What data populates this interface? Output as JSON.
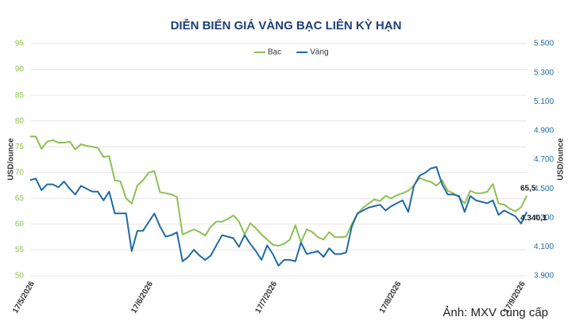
{
  "chart_data": {
    "type": "line",
    "title": "DIỄN BIẾN GIÁ VÀNG BẠC LIÊN KỲ HẠN",
    "ylabel": "USD/ounce",
    "y2label": "USD/ounce",
    "source": "Ảnh: MXV cung cấp",
    "legend": "top",
    "categories": [
      "17/5/2026",
      null,
      null,
      null,
      null,
      null,
      null,
      null,
      null,
      null,
      null,
      null,
      null,
      null,
      null,
      null,
      null,
      null,
      null,
      null,
      null,
      "17/6/2026",
      null,
      null,
      null,
      null,
      null,
      null,
      null,
      null,
      null,
      null,
      null,
      null,
      null,
      null,
      null,
      null,
      null,
      null,
      null,
      null,
      null,
      "17/7/2026",
      null,
      null,
      null,
      null,
      null,
      null,
      null,
      null,
      null,
      null,
      null,
      null,
      null,
      null,
      null,
      null,
      null,
      null,
      null,
      null,
      null,
      "17/8/2026",
      null,
      null,
      null,
      null,
      null,
      null,
      null,
      null,
      null,
      null,
      null,
      null,
      null,
      null,
      null,
      null,
      null,
      null,
      null,
      null,
      null,
      "17/9/2026",
      null
    ],
    "ylim": [
      50,
      95
    ],
    "yticks": [
      50,
      55,
      60,
      65,
      70,
      75,
      80,
      85,
      90,
      95
    ],
    "y2lim": [
      3900,
      5500
    ],
    "y2ticks": [
      {
        "value": 3900,
        "label": "3.900"
      },
      {
        "value": 4100,
        "label": "4.100"
      },
      {
        "value": 4300,
        "label": "4.300"
      },
      {
        "value": 4500,
        "label": "4.500"
      },
      {
        "value": 4700,
        "label": "4.700"
      },
      {
        "value": 4900,
        "label": "4.900"
      },
      {
        "value": 5100,
        "label": "5.100"
      },
      {
        "value": 5300,
        "label": "5.300"
      },
      {
        "value": 5500,
        "label": "5.500"
      }
    ],
    "series": [
      {
        "name": "Bạc",
        "color": "#8cc152",
        "axis": "y",
        "values": [
          77,
          77,
          74.6,
          76,
          76.3,
          75.8,
          75.8,
          76,
          74.5,
          75.5,
          75.2,
          75,
          74.8,
          73,
          73.2,
          68.5,
          68.3,
          65,
          64,
          67.5,
          68.5,
          70,
          70.3,
          66.2,
          66,
          65.8,
          65.3,
          58,
          58.5,
          59,
          58.5,
          57.8,
          59.5,
          60.5,
          60.5,
          61,
          61.7,
          60.5,
          58,
          60.2,
          59.2,
          58,
          57,
          56,
          55.8,
          56.2,
          57,
          59.8,
          56.5,
          59,
          58.5,
          57.5,
          57,
          58.5,
          57.5,
          57.5,
          57.6,
          60,
          62,
          63.2,
          64,
          64.8,
          64.5,
          65.5,
          65,
          65.6,
          66,
          66.5,
          67.5,
          69,
          68.5,
          68.2,
          67.5,
          68.5,
          66.5,
          66,
          65.2,
          64,
          66.5,
          66,
          66,
          66.3,
          67.8,
          64,
          63.8,
          63,
          62.5,
          63.3,
          65.5
        ],
        "value_labels": [
          null,
          null,
          null,
          null,
          null,
          null,
          null,
          null,
          null,
          null,
          null,
          null,
          null,
          null,
          null,
          null,
          null,
          null,
          null,
          null,
          null,
          null,
          null,
          null,
          null,
          null,
          null,
          null,
          null,
          null,
          null,
          null,
          null,
          null,
          null,
          null,
          null,
          null,
          null,
          null,
          null,
          null,
          null,
          null,
          null,
          null,
          null,
          null,
          null,
          null,
          null,
          null,
          null,
          null,
          null,
          null,
          null,
          null,
          null,
          null,
          null,
          null,
          null,
          null,
          null,
          null,
          null,
          null,
          null,
          null,
          null,
          null,
          null,
          null,
          null,
          null,
          null,
          null,
          null,
          null,
          null,
          null,
          null,
          null,
          null,
          null,
          null,
          null,
          "65,5"
        ]
      },
      {
        "name": "Vàng",
        "color": "#1f6aa5",
        "axis": "y2",
        "values": [
          4560,
          4570,
          4490,
          4530,
          4530,
          4510,
          4550,
          4500,
          4460,
          4520,
          4500,
          4480,
          4480,
          4420,
          4480,
          4330,
          4330,
          4330,
          4070,
          4210,
          4210,
          4270,
          4330,
          4240,
          4170,
          4180,
          4200,
          4000,
          4030,
          4080,
          4040,
          4010,
          4040,
          4110,
          4180,
          4170,
          4160,
          4100,
          4180,
          4120,
          4070,
          4010,
          4110,
          4050,
          3970,
          4010,
          4010,
          4000,
          4130,
          4050,
          4060,
          4070,
          4030,
          4090,
          4050,
          4050,
          4060,
          4240,
          4330,
          4350,
          4370,
          4380,
          4390,
          4350,
          4380,
          4400,
          4420,
          4340,
          4520,
          4590,
          4610,
          4640,
          4650,
          4530,
          4460,
          4460,
          4450,
          4340,
          4450,
          4420,
          4410,
          4400,
          4420,
          4320,
          4350,
          4330,
          4310,
          4260,
          4340.1
        ],
        "value_labels": [
          null,
          null,
          null,
          null,
          null,
          null,
          null,
          null,
          null,
          null,
          null,
          null,
          null,
          null,
          null,
          null,
          null,
          null,
          null,
          null,
          null,
          null,
          null,
          null,
          null,
          null,
          null,
          null,
          null,
          null,
          null,
          null,
          null,
          null,
          null,
          null,
          null,
          null,
          null,
          null,
          null,
          null,
          null,
          null,
          null,
          null,
          null,
          null,
          null,
          null,
          null,
          null,
          null,
          null,
          null,
          null,
          null,
          null,
          null,
          null,
          null,
          null,
          null,
          null,
          null,
          null,
          null,
          null,
          null,
          null,
          null,
          null,
          null,
          null,
          null,
          null,
          null,
          null,
          null,
          null,
          null,
          null,
          null,
          null,
          null,
          null,
          null,
          null,
          "4.340,1"
        ]
      }
    ]
  }
}
